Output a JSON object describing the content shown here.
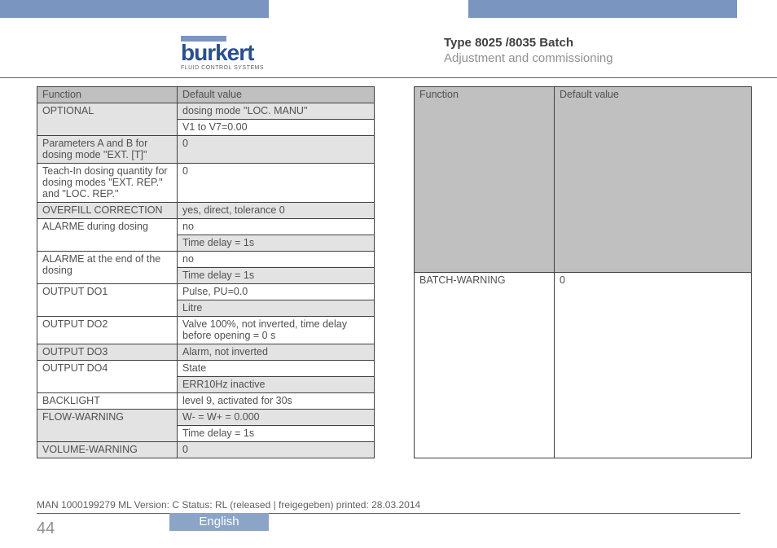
{
  "header": {
    "logo_text": "burkert",
    "logo_sub": "FLUID CONTROL SYSTEMS",
    "title": "Type 8025 /8035 Batch",
    "subtitle": "Adjustment and commissioning"
  },
  "table_left": {
    "header": {
      "func": "Function",
      "val": "Default value"
    },
    "rows": [
      {
        "func": "OPTIONAL",
        "val": "dosing mode \"LOC. MANU\"",
        "shade": true,
        "rowspan": 2,
        "subrows": [
          {
            "val": "V1 to V7=0.00",
            "shade": false
          }
        ]
      },
      {
        "func": "Parameters A and B for dosing mode \"EXT. [T]\"",
        "val": "0",
        "shade": true
      },
      {
        "func": "Teach-In dosing quantity for dosing modes \"EXT. REP.\" and \"LOC. REP.\"",
        "val": "0",
        "shade": false
      },
      {
        "func": "OVERFILL CORRECTION",
        "val": "yes, direct, tolerance 0",
        "shade": true
      },
      {
        "func": "ALARME during dosing",
        "val": "no",
        "shade": false,
        "rowspan": 2,
        "subrows": [
          {
            "val": "Time delay = 1s",
            "shade": true
          }
        ]
      },
      {
        "func": "ALARME at the end of the dosing",
        "val": "no",
        "shade": false,
        "rowspan": 2,
        "subrows": [
          {
            "val": "Time delay = 1s",
            "shade": true
          }
        ]
      },
      {
        "func": "OUTPUT DO1",
        "val": "Pulse, PU=0.0",
        "shade": false,
        "rowspan": 2,
        "subrows": [
          {
            "val": "Litre",
            "shade": true
          }
        ]
      },
      {
        "func": "OUTPUT DO2",
        "val": "Valve 100%, not inverted, time delay before opening = 0 s",
        "shade": false
      },
      {
        "func": "OUTPUT DO3",
        "val": "Alarm, not inverted",
        "shade": true
      },
      {
        "func": "OUTPUT DO4",
        "val": "State",
        "shade": false,
        "rowspan": 2,
        "subrows": [
          {
            "val": "ERR10Hz inactive",
            "shade": true
          }
        ]
      },
      {
        "func": "BACKLIGHT",
        "val": "level 9, activated for 30s",
        "shade": false
      },
      {
        "func": "FLOW-WARNING",
        "val": "W- = W+ = 0.000",
        "shade": true,
        "rowspan": 2,
        "subrows": [
          {
            "val": "Time delay = 1s",
            "shade": false
          }
        ]
      },
      {
        "func": "VOLUME-WARNING",
        "val": "0",
        "shade": true
      }
    ]
  },
  "table_right": {
    "header": {
      "func": "Function",
      "val": "Default value"
    },
    "rows": [
      {
        "func": "BATCH-WARNING",
        "val": "0",
        "shade": false
      }
    ]
  },
  "footer": {
    "line": "MAN  1000199279  ML   Version: C Status: RL (released | freigegeben)  printed: 28.03.2014",
    "page": "44",
    "language": "English"
  },
  "colors": {
    "accent_blue": "#7a95c0",
    "lang_blue": "#8ba4c7",
    "logo_blue": "#2a4f8f",
    "header_gray": "#c0c0c0",
    "shade_gray": "#e3e3e3",
    "text": "#505050"
  }
}
